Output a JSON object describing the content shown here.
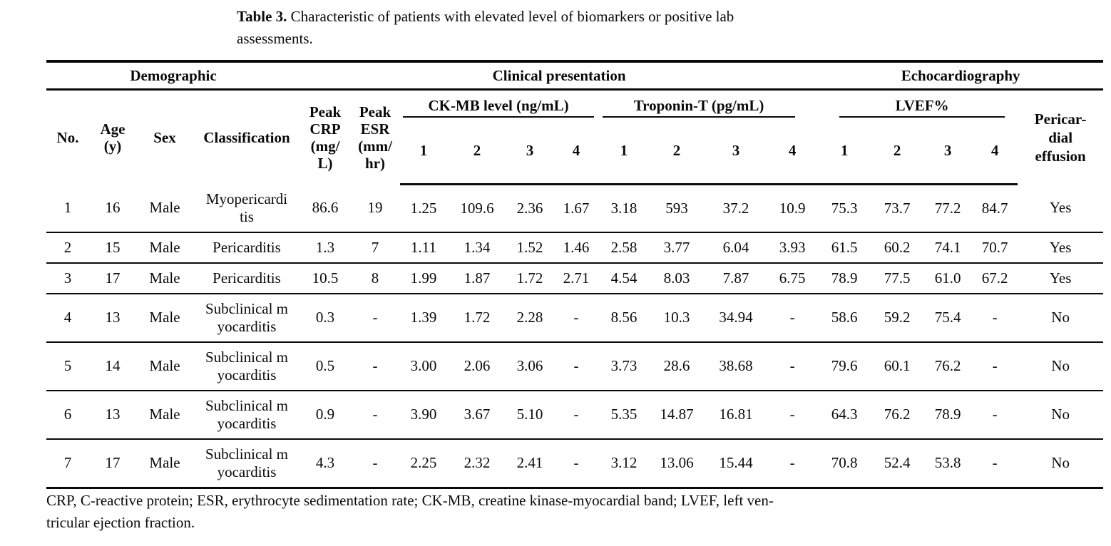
{
  "title": {
    "label": "Table 3.",
    "line1": "Characteristic of patients with elevated level of biomarkers or positive lab",
    "line2": "assessments."
  },
  "table": {
    "groups": [
      {
        "label": "Demographic",
        "span": 4
      },
      {
        "label": "Clinical presentation",
        "span": 10
      },
      {
        "label": "Echocardiography",
        "span": 5
      }
    ],
    "headers": {
      "no": "No.",
      "age": "Age (y)",
      "sex": "Sex",
      "classification": "Classification",
      "peak_crp": "Peak CRP (mg/L)",
      "peak_esr": "Peak ESR (mm/hr)",
      "ckmb": "CK-MB level (ng/mL)",
      "troponin": "Troponin-T (pg/mL)",
      "lvef": "LVEF%",
      "pericardial": "Pericar-dial effusion"
    },
    "sub_numbers": [
      "1",
      "2",
      "3",
      "4"
    ],
    "col_keys": [
      "no",
      "age",
      "sex",
      "classification",
      "peak_crp",
      "peak_esr",
      "ckmb_1",
      "ckmb_2",
      "ckmb_3",
      "ckmb_4",
      "troponin_1",
      "troponin_2",
      "troponin_3",
      "troponin_4",
      "lvef_1",
      "lvef_2",
      "lvef_3",
      "lvef_4",
      "pericardial_effusion"
    ],
    "rows": [
      [
        "1",
        "16",
        "Male",
        "Myopericarditis",
        "86.6",
        "19",
        "1.25",
        "109.6",
        "2.36",
        "1.67",
        "3.18",
        "593",
        "37.2",
        "10.9",
        "75.3",
        "73.7",
        "77.2",
        "84.7",
        "Yes"
      ],
      [
        "2",
        "15",
        "Male",
        "Pericarditis",
        "1.3",
        "7",
        "1.11",
        "1.34",
        "1.52",
        "1.46",
        "2.58",
        "3.77",
        "6.04",
        "3.93",
        "61.5",
        "60.2",
        "74.1",
        "70.7",
        "Yes"
      ],
      [
        "3",
        "17",
        "Male",
        "Pericarditis",
        "10.5",
        "8",
        "1.99",
        "1.87",
        "1.72",
        "2.71",
        "4.54",
        "8.03",
        "7.87",
        "6.75",
        "78.9",
        "77.5",
        "61.0",
        "67.2",
        "Yes"
      ],
      [
        "4",
        "13",
        "Male",
        "Subclinical myocarditis",
        "0.3",
        "-",
        "1.39",
        "1.72",
        "2.28",
        "-",
        "8.56",
        "10.3",
        "34.94",
        "-",
        "58.6",
        "59.2",
        "75.4",
        "-",
        "No"
      ],
      [
        "5",
        "14",
        "Male",
        "Subclinical myocarditis",
        "0.5",
        "-",
        "3.00",
        "2.06",
        "3.06",
        "-",
        "3.73",
        "28.6",
        "38.68",
        "-",
        "79.6",
        "60.1",
        "76.2",
        "-",
        "No"
      ],
      [
        "6",
        "13",
        "Male",
        "Subclinical myocarditis",
        "0.9",
        "-",
        "3.90",
        "3.67",
        "5.10",
        "-",
        "5.35",
        "14.87",
        "16.81",
        "-",
        "64.3",
        "76.2",
        "78.9",
        "-",
        "No"
      ],
      [
        "7",
        "17",
        "Male",
        "Subclinical myocarditis",
        "4.3",
        "-",
        "2.25",
        "2.32",
        "2.41",
        "-",
        "3.12",
        "13.06",
        "15.44",
        "-",
        "70.8",
        "52.4",
        "53.8",
        "-",
        "No"
      ]
    ]
  },
  "footnote": {
    "line1": "CRP, C-reactive protein; ESR, erythrocyte sedimentation rate; CK-MB, creatine kinase-myocardial band; LVEF, left ven-",
    "line2": "tricular ejection fraction."
  }
}
